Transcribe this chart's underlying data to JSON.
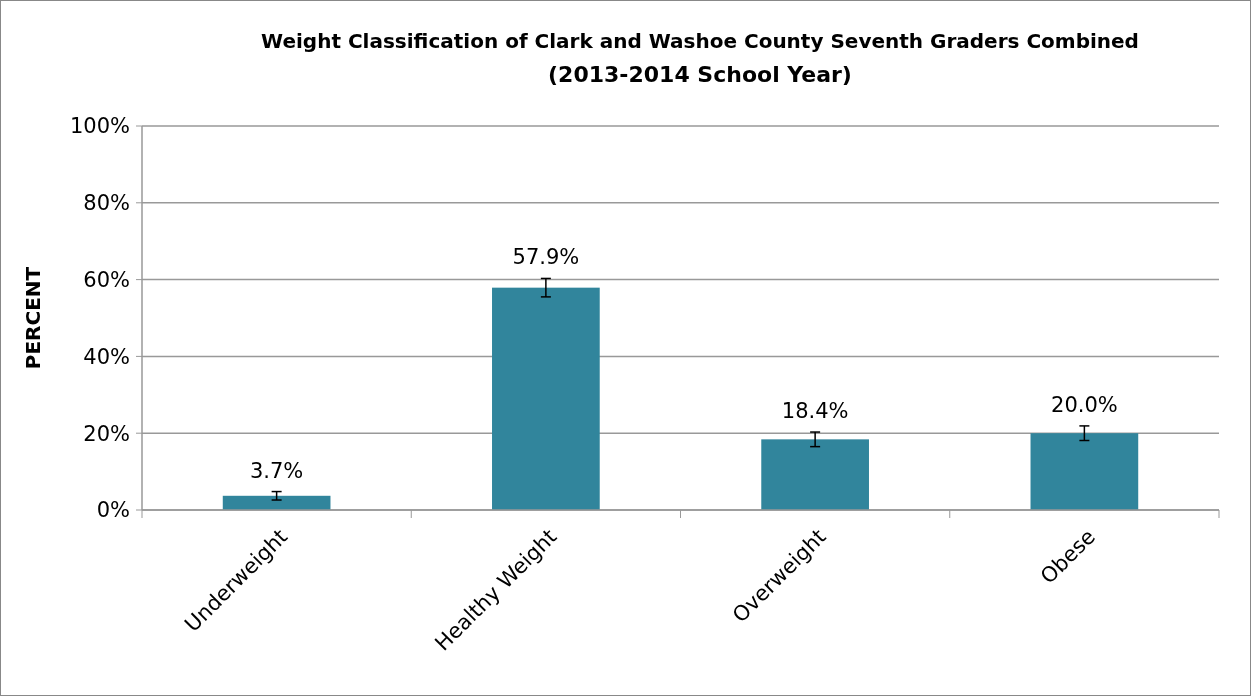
{
  "chart_data": {
    "type": "bar",
    "title": "Weight Classification of Clark and Washoe County Seventh Graders Combined",
    "subtitle": "(2013-2014 School Year)",
    "ylabel": "PERCENT",
    "categories": [
      "Underweight",
      "Healthy Weight",
      "Overweight",
      "Obese"
    ],
    "values": [
      3.7,
      57.9,
      18.4,
      20.0
    ],
    "color": "#31859c",
    "errors": [
      1.1,
      2.4,
      1.9,
      1.9
    ],
    "value_labels": [
      "3.7%",
      "57.9%",
      "18.4%",
      "20.0%"
    ],
    "ylim": [
      0,
      100
    ],
    "yticks": [
      {
        "value": 0,
        "label": "0%"
      },
      {
        "value": 20,
        "label": "20%"
      },
      {
        "value": 40,
        "label": "40%"
      },
      {
        "value": 60,
        "label": "60%"
      },
      {
        "value": 80,
        "label": "80%"
      },
      {
        "value": 100,
        "label": "100%"
      }
    ],
    "grid": "y"
  }
}
